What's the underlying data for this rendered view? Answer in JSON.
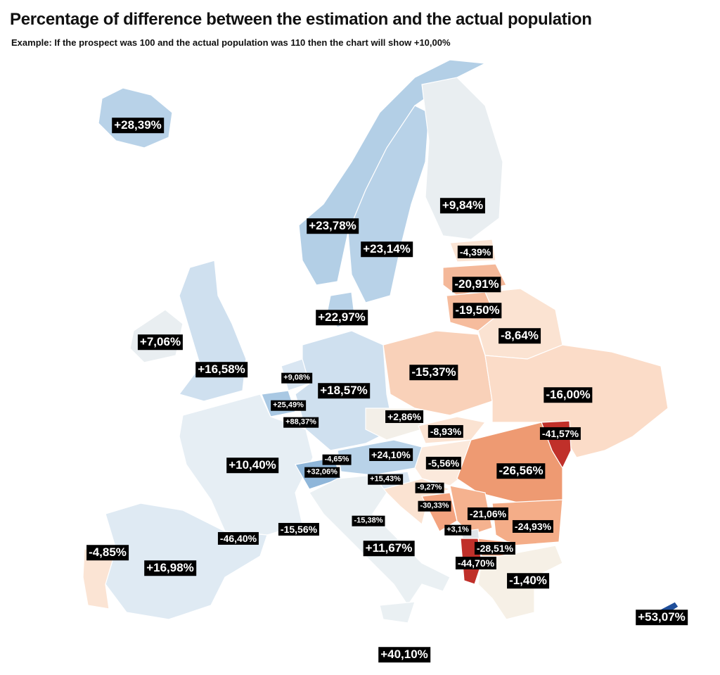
{
  "title": "Percentage of difference between the estimation and the actual population",
  "subtitle": "Example: If the prospect was 100 and the actual population was 110 then the chart will show +10,00%",
  "colors": {
    "strong_positive": "#a9c8e3",
    "positive": "#cfe0ef",
    "near_zero": "#eef1f2",
    "slight_negative": "#fbe4d4",
    "negative": "#f7c4a7",
    "strong_negative": "#ee9a72",
    "extreme_negative": "#c0302a"
  },
  "labels": {
    "iceland": "+28,39%",
    "finland": "+9,84%",
    "norway": "+23,78%",
    "sweden": "+23,14%",
    "estonia": "-4,39%",
    "latvia": "-20,91%",
    "lithuania": "-19,50%",
    "denmark": "+22,97%",
    "belarus": "-8,64%",
    "ireland": "+7,06%",
    "uk": "+16,58%",
    "netherlands": "+9,08%",
    "germany": "+18,57%",
    "poland": "-15,37%",
    "ukraine": "-16,00%",
    "belgium": "+25,49%",
    "luxembourg": "+88,37%",
    "czechia": "+2,86%",
    "slovakia": "-8,93%",
    "moldova": "-41,57%",
    "france": "+10,40%",
    "liechtenstein": "-4,65%",
    "switzerland": "+32,06%",
    "austria": "+24,10%",
    "hungary": "-5,56%",
    "romania": "-26,56%",
    "slovenia": "+15,43%",
    "croatia": "-9,27%",
    "bosnia": "-30,33%",
    "serbia": "-21,06%",
    "bulgaria": "-24,93%",
    "montenegro": "+3,1%",
    "north_macedonia": "-28,51%",
    "albania": "-44,70%",
    "greece": "-1,40%",
    "andorra": "-46,40%",
    "monaco": "-15,56%",
    "san_marino": "-15,38%",
    "italy": "+11,67%",
    "portugal": "-4,85%",
    "spain": "+16,98%",
    "cyprus": "+53,07%",
    "malta": "+40,10%"
  }
}
